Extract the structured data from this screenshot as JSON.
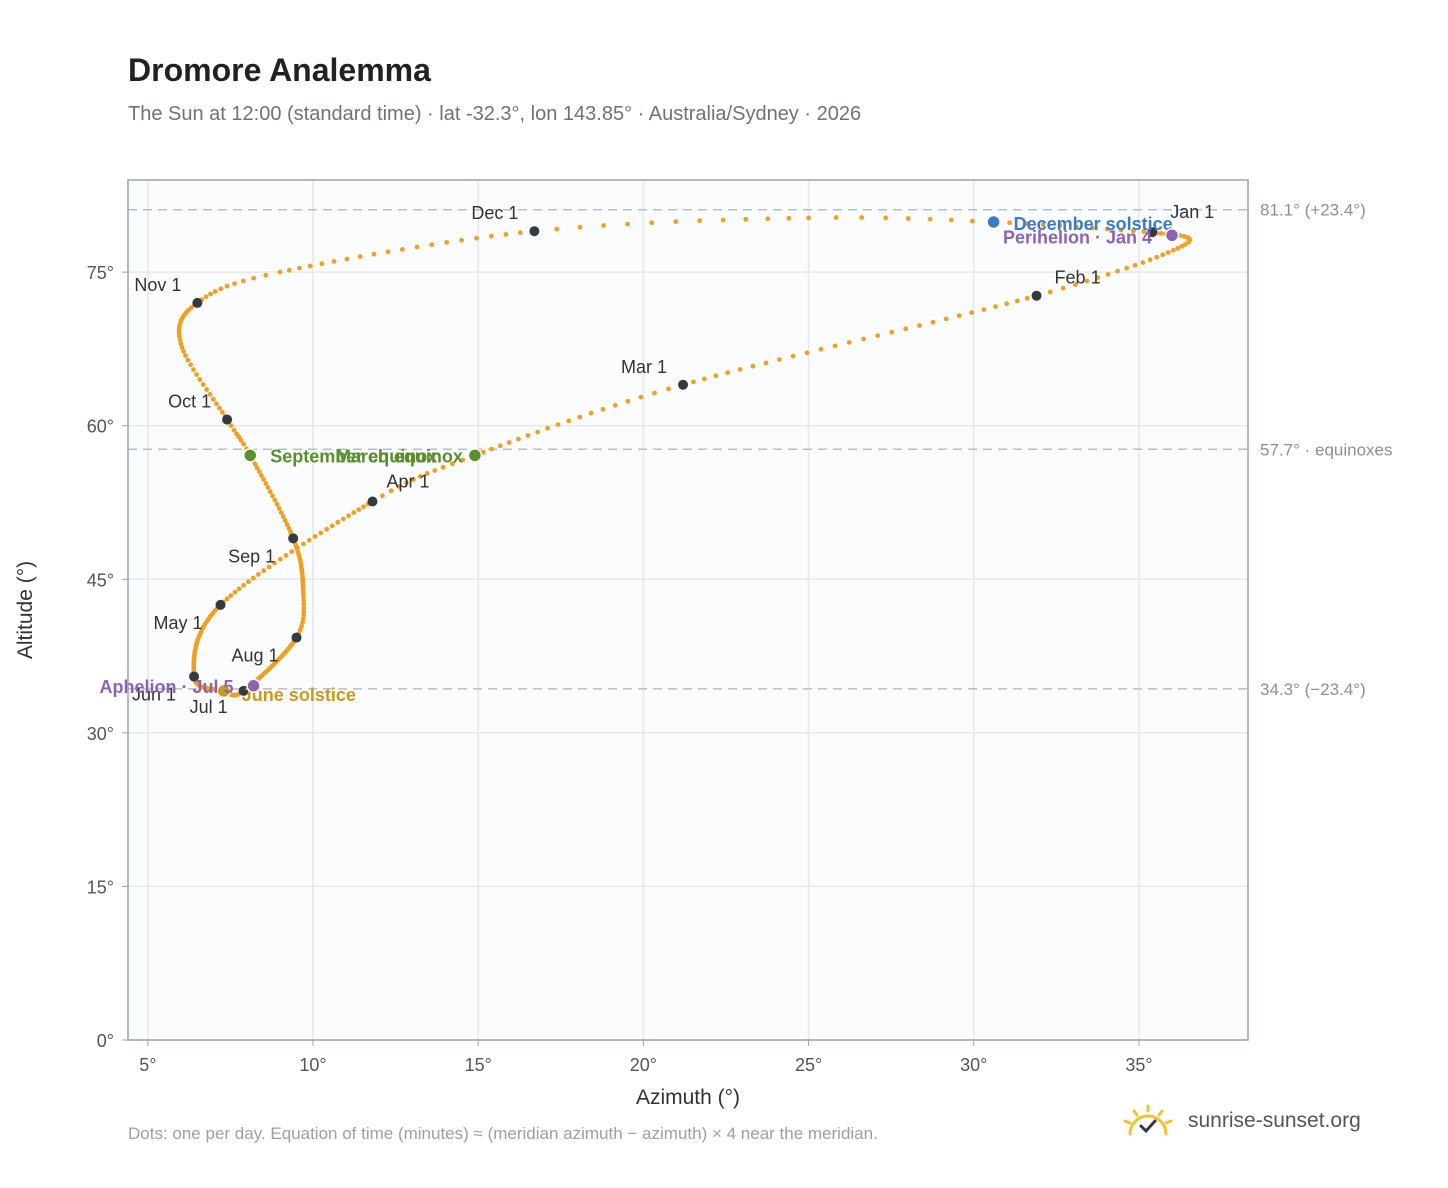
{
  "colors": {
    "curve": "#f0a020",
    "month_marker": "#333a44",
    "equinox": "#5a8f2e",
    "june_solstice": "#c99a1c",
    "december_solstice": "#3a7bc8",
    "apsis": "#8e62b0",
    "grid": "#e5e8ec",
    "plot_bg": "#fafcfe",
    "frame": "#9aa3b0",
    "refline": "#b4bfcb"
  },
  "header": {
    "title": "Dromore Analemma",
    "subtitle": "The Sun at 12:00 (standard time) · lat -32.3°, lon 143.85° · Australia/Sydney · 2026"
  },
  "chart_data": {
    "type": "scatter",
    "xlabel": "Azimuth (°)",
    "ylabel": "Altitude (°)",
    "xlim": [
      4.4,
      38.3
    ],
    "ylim": [
      0,
      84
    ],
    "x_ticks": [
      5,
      10,
      15,
      20,
      25,
      30,
      35
    ],
    "y_ticks": [
      0,
      15,
      30,
      45,
      60,
      75
    ],
    "x_tick_labels": [
      "5°",
      "10°",
      "15°",
      "20°",
      "25°",
      "30°",
      "35°"
    ],
    "y_tick_labels": [
      "0°",
      "15°",
      "30°",
      "45°",
      "60°",
      "75°"
    ],
    "grid": true,
    "reference_lines": [
      {
        "y": 81.1,
        "label": "81.1° (+23.4°)"
      },
      {
        "y": 57.7,
        "label": "57.7° · equinoxes"
      },
      {
        "y": 34.3,
        "label": "34.3° (−23.4°)"
      }
    ],
    "month_markers": [
      {
        "label": "Jan 1",
        "x": 35.4,
        "y": 78.9
      },
      {
        "label": "Feb 1",
        "x": 31.9,
        "y": 72.7
      },
      {
        "label": "Mar 1",
        "x": 21.2,
        "y": 64.0
      },
      {
        "label": "Apr 1",
        "x": 11.8,
        "y": 52.6
      },
      {
        "label": "May 1",
        "x": 7.2,
        "y": 42.5
      },
      {
        "label": "Jun 1",
        "x": 6.4,
        "y": 35.5
      },
      {
        "label": "Jul 1",
        "x": 7.9,
        "y": 34.1
      },
      {
        "label": "Aug 1",
        "x": 9.5,
        "y": 39.3
      },
      {
        "label": "Sep 1",
        "x": 9.4,
        "y": 49.0
      },
      {
        "label": "Oct 1",
        "x": 7.4,
        "y": 60.6
      },
      {
        "label": "Nov 1",
        "x": 6.5,
        "y": 72.0
      },
      {
        "label": "Dec 1",
        "x": 16.7,
        "y": 79.0
      }
    ],
    "events": [
      {
        "label": "March equinox",
        "x": 14.9,
        "y": 57.1,
        "color": "equinox"
      },
      {
        "label": "September equinox",
        "x": 8.1,
        "y": 57.1,
        "color": "equinox"
      },
      {
        "label": "June solstice",
        "x": 7.3,
        "y": 34.1,
        "color": "june_solstice"
      },
      {
        "label": "December solstice",
        "x": 30.6,
        "y": 79.9,
        "color": "december_solstice"
      },
      {
        "label": "Perihelion · Jan 4",
        "x": 36.0,
        "y": 78.6,
        "color": "apsis"
      },
      {
        "label": "Aphelion · Jul 5",
        "x": 8.2,
        "y": 34.6,
        "color": "apsis"
      }
    ],
    "path_knots": [
      [
        35.4,
        78.9,
        0
      ],
      [
        36.4,
        77.7,
        13
      ],
      [
        31.9,
        72.7,
        31
      ],
      [
        21.2,
        64.0,
        59
      ],
      [
        14.9,
        57.1,
        78
      ],
      [
        11.8,
        52.6,
        90
      ],
      [
        7.2,
        42.5,
        120
      ],
      [
        6.4,
        35.5,
        151
      ],
      [
        7.3,
        34.1,
        171
      ],
      [
        7.9,
        34.1,
        181
      ],
      [
        9.5,
        39.3,
        212
      ],
      [
        9.7,
        44.0,
        225
      ],
      [
        9.4,
        49.0,
        243
      ],
      [
        8.1,
        57.1,
        265
      ],
      [
        7.4,
        60.6,
        273
      ],
      [
        6.0,
        68.0,
        290
      ],
      [
        6.5,
        72.0,
        304
      ],
      [
        9.0,
        75.0,
        315
      ],
      [
        16.7,
        79.0,
        334
      ],
      [
        25.0,
        80.3,
        346
      ],
      [
        30.6,
        79.9,
        354
      ],
      [
        35.4,
        78.9,
        365
      ]
    ],
    "note": "Dots: one per day. Equation of time (minutes) ≈ (meridian azimuth − azimuth) × 4 near the meridian."
  },
  "brand": {
    "icon": "sun-logo-icon",
    "name": "sunrise-sunset.org"
  }
}
